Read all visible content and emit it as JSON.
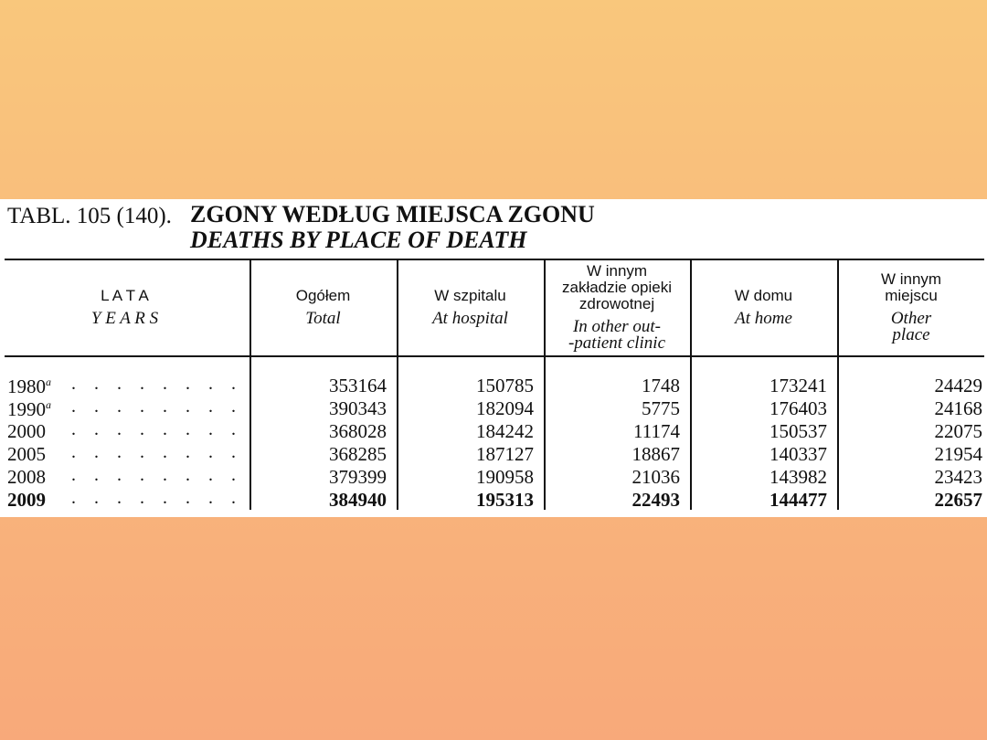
{
  "table": {
    "label": "TABL. 105 (140).",
    "title": "ZGONY WEDŁUG MIEJSCA ZGONU",
    "subtitle": "DEATHS BY PLACE OF DEATH",
    "headers": [
      {
        "pl": [
          "L A T A"
        ],
        "en": [
          "Y E A R S"
        ]
      },
      {
        "pl": [
          "Ogółem"
        ],
        "en": [
          "Total"
        ]
      },
      {
        "pl": [
          "W szpitalu"
        ],
        "en": [
          "At hospital"
        ]
      },
      {
        "pl": [
          "W innym",
          "zakładzie opieki",
          "zdrowotnej"
        ],
        "en": [
          "In other out-",
          "-patient clinic"
        ]
      },
      {
        "pl": [
          "W domu"
        ],
        "en": [
          "At home"
        ]
      },
      {
        "pl": [
          "W innym",
          "miejscu"
        ],
        "en": [
          "Other",
          "place"
        ]
      }
    ],
    "rows": [
      {
        "year": "1980",
        "note": "a",
        "values": [
          353164,
          150785,
          1748,
          173241,
          24429
        ]
      },
      {
        "year": "1990",
        "note": "a",
        "values": [
          390343,
          182094,
          5775,
          176403,
          24168
        ]
      },
      {
        "year": "2000",
        "values": [
          368028,
          184242,
          11174,
          150537,
          22075
        ]
      },
      {
        "year": "2005",
        "values": [
          368285,
          187127,
          18867,
          140337,
          21954
        ]
      },
      {
        "year": "2008",
        "values": [
          379399,
          190958,
          21036,
          143982,
          23423
        ]
      },
      {
        "year": "2009",
        "values": [
          384940,
          195313,
          22493,
          144477,
          22657
        ]
      }
    ]
  }
}
